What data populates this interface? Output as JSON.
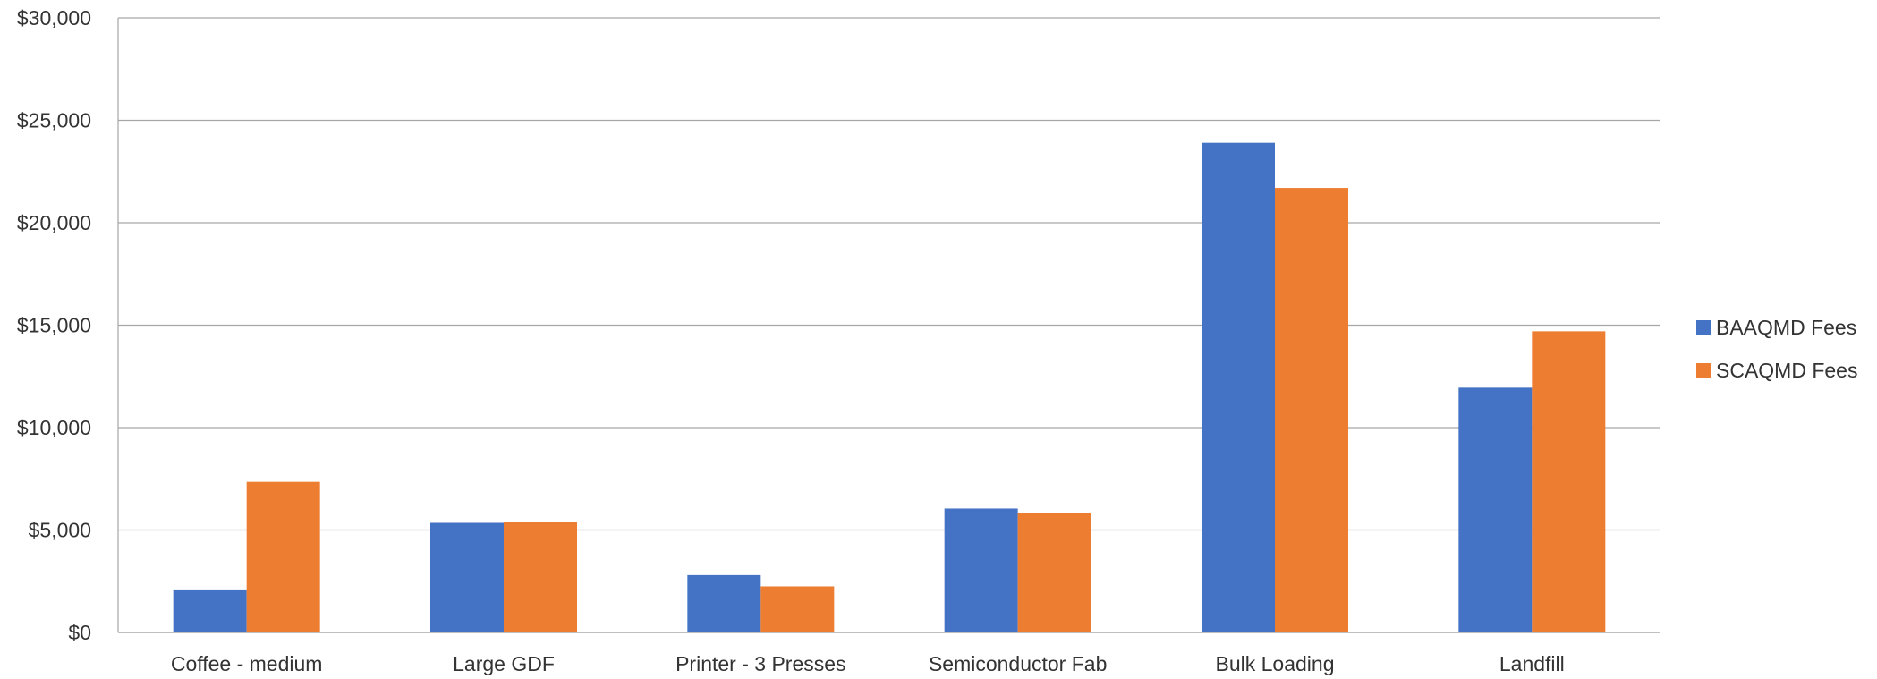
{
  "chart_data": {
    "type": "bar",
    "title": "",
    "xlabel": "",
    "ylabel": "",
    "categories": [
      "Coffee - medium",
      "Large GDF",
      "Printer - 3 Presses",
      "Semiconductor Fab",
      "Bulk Loading",
      "Landfill"
    ],
    "series": [
      {
        "name": "BAAQMD Fees",
        "color": "#4472C4",
        "values": [
          2100,
          5350,
          2800,
          6050,
          23900,
          11950
        ]
      },
      {
        "name": "SCAQMD Fees",
        "color": "#ED7D31",
        "values": [
          7350,
          5400,
          2250,
          5850,
          21700,
          14700
        ]
      }
    ],
    "ylim": [
      0,
      30000
    ],
    "yticks": [
      0,
      5000,
      10000,
      15000,
      20000,
      25000,
      30000
    ],
    "ytick_labels": [
      "$0",
      "$5,000",
      "$10,000",
      "$15,000",
      "$20,000",
      "$25,000",
      "$30,000"
    ],
    "grid": true,
    "legend_position": "right"
  }
}
